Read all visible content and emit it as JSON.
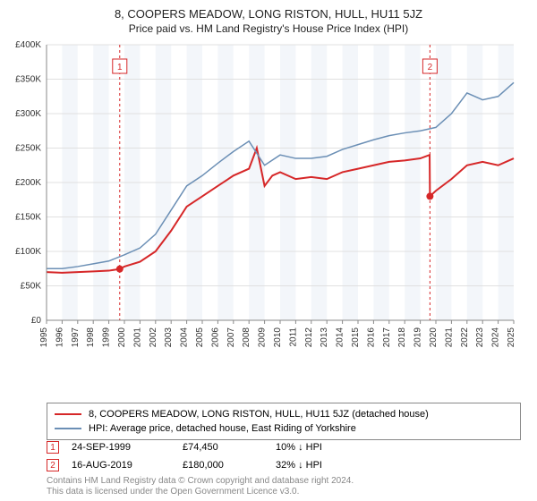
{
  "title_main": "8, COOPERS MEADOW, LONG RISTON, HULL, HU11 5JZ",
  "title_sub": "Price paid vs. HM Land Registry's House Price Index (HPI)",
  "chart": {
    "type": "line",
    "background_color": "#ffffff",
    "alt_band_color": "#f3f6fa",
    "grid_color": "#e0e0e0",
    "axis_color": "#888888",
    "axis_font_size": 10,
    "x_years": [
      "1995",
      "1996",
      "1997",
      "1998",
      "1999",
      "2000",
      "2001",
      "2002",
      "2003",
      "2004",
      "2005",
      "2006",
      "2007",
      "2008",
      "2009",
      "2010",
      "2011",
      "2012",
      "2013",
      "2014",
      "2015",
      "2016",
      "2017",
      "2018",
      "2019",
      "2020",
      "2021",
      "2022",
      "2023",
      "2024",
      "2025"
    ],
    "ylim": [
      0,
      400000
    ],
    "ytick_step": 50000,
    "yticks": [
      "£0",
      "£50K",
      "£100K",
      "£150K",
      "£200K",
      "£250K",
      "£300K",
      "£350K",
      "£400K"
    ],
    "series": [
      {
        "name": "price_paid",
        "color": "#d62728",
        "width": 2,
        "data": [
          [
            1995,
            70000
          ],
          [
            1996,
            69000
          ],
          [
            1997,
            70000
          ],
          [
            1998,
            71000
          ],
          [
            1999,
            72000
          ],
          [
            1999.7,
            74450
          ],
          [
            2000,
            78000
          ],
          [
            2001,
            85000
          ],
          [
            2002,
            100000
          ],
          [
            2003,
            130000
          ],
          [
            2004,
            165000
          ],
          [
            2005,
            180000
          ],
          [
            2006,
            195000
          ],
          [
            2007,
            210000
          ],
          [
            2008,
            220000
          ],
          [
            2008.5,
            250000
          ],
          [
            2009,
            195000
          ],
          [
            2009.5,
            210000
          ],
          [
            2010,
            215000
          ],
          [
            2011,
            205000
          ],
          [
            2012,
            208000
          ],
          [
            2013,
            205000
          ],
          [
            2014,
            215000
          ],
          [
            2015,
            220000
          ],
          [
            2016,
            225000
          ],
          [
            2017,
            230000
          ],
          [
            2018,
            232000
          ],
          [
            2019,
            235000
          ],
          [
            2019.6,
            240000
          ],
          [
            2019.62,
            180000
          ],
          [
            2020,
            188000
          ],
          [
            2021,
            205000
          ],
          [
            2022,
            225000
          ],
          [
            2023,
            230000
          ],
          [
            2024,
            225000
          ],
          [
            2025,
            235000
          ]
        ]
      },
      {
        "name": "hpi",
        "color": "#6b8fb5",
        "width": 1.5,
        "data": [
          [
            1995,
            75000
          ],
          [
            1996,
            75000
          ],
          [
            1997,
            78000
          ],
          [
            1998,
            82000
          ],
          [
            1999,
            86000
          ],
          [
            2000,
            95000
          ],
          [
            2001,
            105000
          ],
          [
            2002,
            125000
          ],
          [
            2003,
            160000
          ],
          [
            2004,
            195000
          ],
          [
            2005,
            210000
          ],
          [
            2006,
            228000
          ],
          [
            2007,
            245000
          ],
          [
            2008,
            260000
          ],
          [
            2009,
            225000
          ],
          [
            2010,
            240000
          ],
          [
            2011,
            235000
          ],
          [
            2012,
            235000
          ],
          [
            2013,
            238000
          ],
          [
            2014,
            248000
          ],
          [
            2015,
            255000
          ],
          [
            2016,
            262000
          ],
          [
            2017,
            268000
          ],
          [
            2018,
            272000
          ],
          [
            2019,
            275000
          ],
          [
            2020,
            280000
          ],
          [
            2021,
            300000
          ],
          [
            2022,
            330000
          ],
          [
            2023,
            320000
          ],
          [
            2024,
            325000
          ],
          [
            2025,
            345000
          ]
        ]
      }
    ],
    "markers": [
      {
        "n": "1",
        "x": 1999.7,
        "y": 74450,
        "color": "#d62728"
      },
      {
        "n": "2",
        "x": 2019.62,
        "y": 180000,
        "color": "#d62728"
      }
    ],
    "marker_dashed_color": "#d62728"
  },
  "legend": {
    "items": [
      {
        "color": "#d62728",
        "width": 2,
        "label": "8, COOPERS MEADOW, LONG RISTON, HULL, HU11 5JZ (detached house)"
      },
      {
        "color": "#6b8fb5",
        "width": 1.5,
        "label": "HPI: Average price, detached house, East Riding of Yorkshire"
      }
    ]
  },
  "marker_table": [
    {
      "n": "1",
      "date": "24-SEP-1999",
      "price": "£74,450",
      "pct": "10% ↓ HPI",
      "color": "#d62728"
    },
    {
      "n": "2",
      "date": "16-AUG-2019",
      "price": "£180,000",
      "pct": "32% ↓ HPI",
      "color": "#d62728"
    }
  ],
  "footer_line1": "Contains HM Land Registry data © Crown copyright and database right 2024.",
  "footer_line2": "This data is licensed under the Open Government Licence v3.0."
}
